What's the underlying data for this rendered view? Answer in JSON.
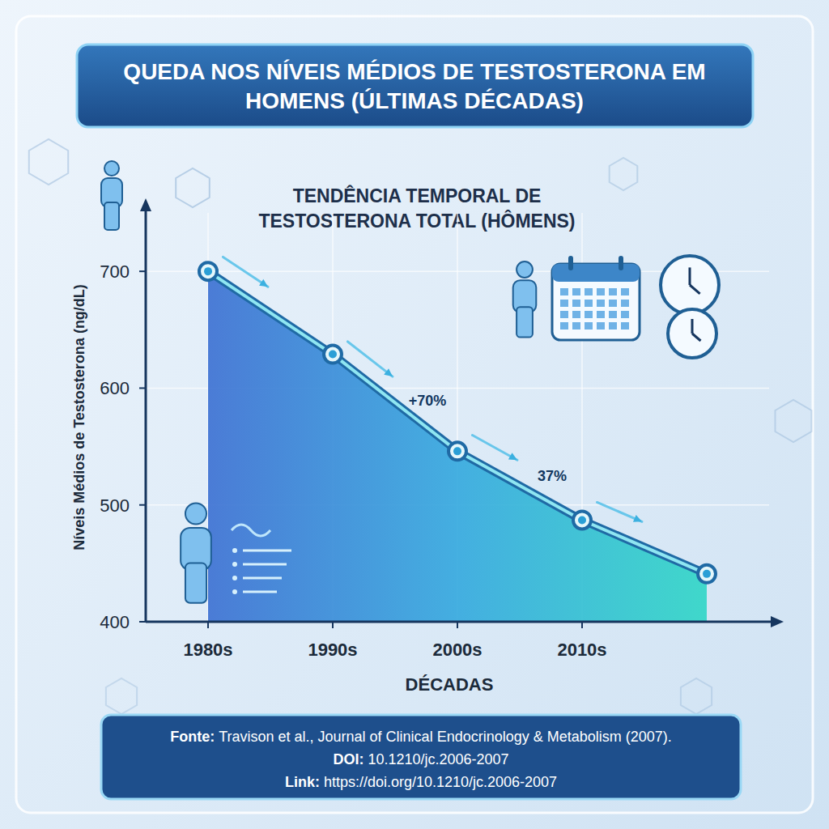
{
  "chart_data": {
    "type": "line",
    "title": "QUEDA NOS NÍVEIS MÉDIOS DE TESTOSTERONA EM HOMENS (ÚLTIMAS DÉCADAS)",
    "subtitle": "TENDÊNCIA TEMPORAL DE TESTOSTERONA TOTAL (HÔMENS)",
    "x_label": "DÉCADAS",
    "y_label": "Níveis Médios de Testosterona (ng/dL)",
    "categories": [
      "1980s",
      "1990s",
      "2000s",
      "2010s",
      null
    ],
    "values": [
      700,
      629,
      546,
      487,
      441
    ],
    "color": "#1f6aa5",
    "marker": "circle",
    "ylim": [
      400,
      750
    ],
    "yticks": [
      400,
      500,
      600,
      700
    ],
    "grid": true,
    "annotations": [
      "+70%",
      "37%"
    ],
    "source": [
      {
        "label": "Fonte:",
        "text": "Travison et al., Journal of Clinical Endocrinology & Metabolism (2007)."
      },
      {
        "label": "DOI:",
        "text": "10.1210/jc.2006-2007"
      },
      {
        "label": "Link:",
        "text": "https://doi.org/10.1210/jc.2006-2007"
      }
    ]
  }
}
